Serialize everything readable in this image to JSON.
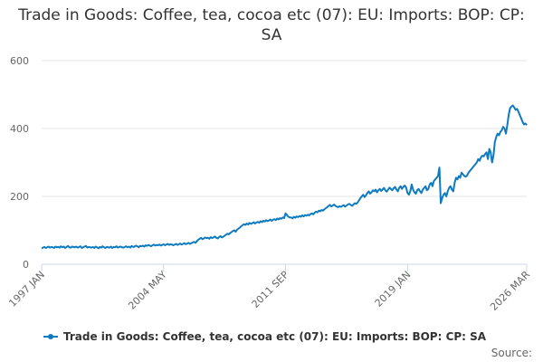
{
  "chart_data": {
    "type": "line",
    "title": "Trade in Goods: Coffee, tea, cocoa etc (07): EU: Imports: BOP: CP: SA",
    "source": "Source:",
    "categories": [
      "1997 JAN",
      null,
      null,
      null,
      null,
      null,
      null,
      null,
      null,
      null,
      null,
      null,
      null,
      null,
      null,
      null,
      null,
      null,
      null,
      null,
      null,
      null,
      null,
      null,
      null,
      null,
      null,
      null,
      null,
      null,
      null,
      null,
      null,
      null,
      null,
      null,
      null,
      null,
      null,
      null,
      null,
      null,
      null,
      null,
      null,
      null,
      null,
      null,
      null,
      null,
      null,
      null,
      null,
      null,
      null,
      null,
      null,
      null,
      null,
      null,
      null,
      null,
      null,
      null,
      null,
      null,
      null,
      null,
      null,
      null,
      null,
      null,
      null,
      null,
      null,
      null,
      null,
      null,
      null,
      null,
      null,
      null,
      null,
      null,
      null,
      null,
      null,
      null,
      "2004 MAY",
      null,
      null,
      null,
      null,
      null,
      null,
      null,
      null,
      null,
      null,
      null,
      null,
      null,
      null,
      null,
      null,
      null,
      null,
      null,
      null,
      null,
      null,
      null,
      null,
      null,
      null,
      null,
      null,
      null,
      null,
      null,
      null,
      null,
      null,
      null,
      null,
      null,
      null,
      null,
      null,
      null,
      null,
      null,
      null,
      null,
      null,
      null,
      null,
      null,
      null,
      null,
      null,
      null,
      null,
      null,
      null,
      null,
      null,
      null,
      null,
      null,
      null,
      null,
      null,
      null,
      null,
      null,
      null,
      null,
      null,
      null,
      null,
      null,
      null,
      null,
      null,
      null,
      null,
      null,
      null,
      null,
      null,
      null,
      null,
      null,
      null,
      null,
      "2011 SEP",
      null,
      null,
      null,
      null,
      null,
      null,
      null,
      null,
      null,
      null,
      null,
      null,
      null,
      null,
      null,
      null,
      null,
      null,
      null,
      null,
      null,
      null,
      null,
      null,
      null,
      null,
      null,
      null,
      null,
      null,
      null,
      null,
      null,
      null,
      null,
      null,
      null,
      null,
      null,
      null,
      null,
      null,
      null,
      null,
      null,
      null,
      null,
      null,
      null,
      null,
      null,
      null,
      null,
      null,
      null,
      null,
      null,
      null,
      null,
      null,
      null,
      null,
      null,
      null,
      null,
      null,
      null,
      null,
      null,
      null,
      null,
      null,
      null,
      null,
      null,
      null,
      null,
      null,
      null,
      null,
      null,
      null,
      null,
      null,
      null,
      null,
      null,
      "2019 JAN",
      null,
      null,
      null,
      null,
      null,
      null,
      null,
      null,
      null,
      null,
      null,
      null,
      null,
      null,
      null,
      null,
      null,
      null,
      null,
      null,
      null,
      null,
      null,
      null,
      null,
      null,
      null,
      null,
      null,
      null,
      null,
      null,
      null,
      null,
      null,
      null,
      null,
      null,
      null,
      null,
      null,
      null,
      null,
      null,
      null,
      null,
      null,
      null,
      null,
      null,
      null,
      null,
      null,
      null,
      null,
      null,
      null,
      null,
      null,
      null,
      null,
      null,
      null,
      null,
      null,
      null,
      null,
      null,
      null,
      null,
      null,
      null,
      null,
      null,
      null,
      null,
      null,
      null,
      null,
      null,
      null,
      null,
      null,
      null,
      null,
      "2026 MAR"
    ],
    "series": [
      {
        "name": "Trade in Goods: Coffee, tea, cocoa etc (07): EU: Imports: BOP: CP: SA",
        "color": "#0e7bc0",
        "values": [
          47,
          49,
          51,
          48,
          50,
          52,
          49,
          51,
          50,
          48,
          52,
          50,
          51,
          49,
          53,
          50,
          52,
          48,
          51,
          54,
          50,
          49,
          52,
          51,
          50,
          52,
          49,
          51,
          53,
          48,
          50,
          52,
          54,
          49,
          51,
          50,
          49,
          51,
          48,
          52,
          50,
          47,
          51,
          49,
          53,
          50,
          48,
          51,
          50,
          49,
          52,
          48,
          51,
          50,
          53,
          49,
          51,
          52,
          50,
          49,
          51,
          53,
          50,
          52,
          49,
          54,
          51,
          52,
          55,
          53,
          50,
          54,
          53,
          55,
          52,
          56,
          54,
          57,
          55,
          53,
          56,
          58,
          55,
          57,
          56,
          58,
          55,
          57,
          59,
          56,
          58,
          60,
          57,
          59,
          58,
          56,
          58,
          60,
          57,
          59,
          61,
          58,
          60,
          62,
          59,
          61,
          63,
          60,
          62,
          64,
          66,
          63,
          68,
          72,
          75,
          78,
          74,
          76,
          79,
          77,
          78,
          75,
          80,
          77,
          79,
          82,
          78,
          76,
          80,
          83,
          79,
          81,
          84,
          87,
          90,
          88,
          92,
          95,
          98,
          100,
          96,
          102,
          105,
          108,
          112,
          115,
          118,
          116,
          120,
          117,
          122,
          119,
          121,
          124,
          120,
          123,
          125,
          122,
          127,
          124,
          128,
          126,
          130,
          127,
          129,
          132,
          128,
          131,
          133,
          130,
          135,
          132,
          136,
          134,
          138,
          136,
          150,
          145,
          140,
          138,
          138,
          135,
          140,
          137,
          141,
          139,
          142,
          140,
          144,
          141,
          145,
          143,
          146,
          144,
          148,
          150,
          147,
          152,
          155,
          153,
          158,
          156,
          160,
          158,
          162,
          165,
          168,
          172,
          175,
          170,
          173,
          176,
          172,
          170,
          168,
          171,
          169,
          172,
          174,
          170,
          173,
          176,
          178,
          175,
          172,
          176,
          180,
          178,
          182,
          188,
          195,
          200,
          205,
          198,
          203,
          210,
          215,
          208,
          212,
          218,
          215,
          220,
          212,
          218,
          222,
          216,
          220,
          225,
          218,
          214,
          220,
          226,
          222,
          218,
          224,
          228,
          220,
          215,
          225,
          230,
          222,
          228,
          232,
          226,
          210,
          205,
          215,
          235,
          220,
          212,
          208,
          218,
          222,
          215,
          210,
          220,
          225,
          230,
          218,
          222,
          235,
          240,
          230,
          245,
          250,
          255,
          260,
          285,
          180,
          195,
          205,
          210,
          200,
          215,
          225,
          230,
          220,
          215,
          240,
          255,
          250,
          260,
          255,
          270,
          265,
          260,
          258,
          262,
          270,
          275,
          280,
          285,
          290,
          295,
          300,
          310,
          305,
          315,
          320,
          318,
          325,
          330,
          310,
          340,
          330,
          300,
          320,
          360,
          375,
          385,
          380,
          390,
          395,
          405,
          400,
          385,
          410,
          440,
          460,
          465,
          468,
          462,
          455,
          458,
          450,
          440,
          430,
          420,
          412,
          415,
          410
        ]
      }
    ],
    "ylim": [
      0,
      600
    ],
    "yticks": [
      0,
      200,
      400,
      600
    ],
    "grid": true
  }
}
